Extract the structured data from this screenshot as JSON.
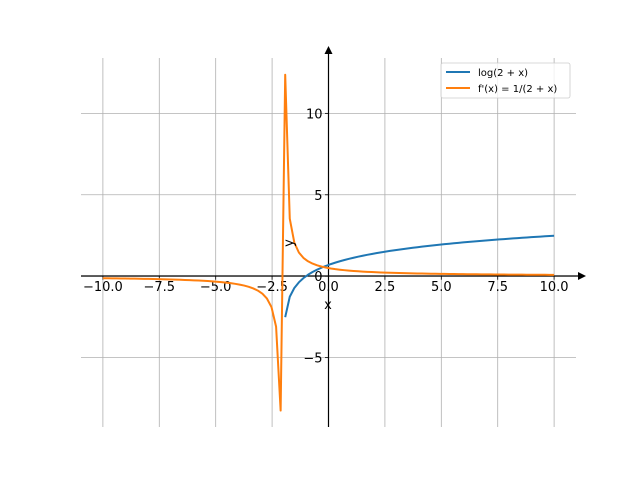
{
  "chart_data": {
    "type": "line",
    "title": "",
    "xlabel": "x",
    "ylabel": "y",
    "xlim": [
      -10.97,
      10.97
    ],
    "ylim": [
      -9.26,
      13.4
    ],
    "grid": true,
    "legend_placement": "top-right",
    "x_ticks": [
      -10.0,
      -7.5,
      -5.0,
      -2.5,
      0.0,
      2.5,
      5.0,
      7.5,
      10.0
    ],
    "x_tick_labels": [
      "−10.0",
      "−7.5",
      "−5.0",
      "−2.5",
      "0.0",
      "2.5",
      "5.0",
      "7.5",
      "10.0"
    ],
    "y_ticks": [
      -5,
      0,
      5,
      10
    ],
    "y_tick_labels": [
      "−5",
      "0",
      "5",
      "10"
    ],
    "x_sampling": {
      "start": -10,
      "stop": 10,
      "num": 100
    },
    "series": [
      {
        "name": "log(2 + x)",
        "formula": "log(2+x)",
        "color": "#1f77b4"
      },
      {
        "name": "f'(x) = 1/(2 + x)",
        "formula": "1/(2+x)",
        "color": "#ff7f0e"
      }
    ]
  }
}
